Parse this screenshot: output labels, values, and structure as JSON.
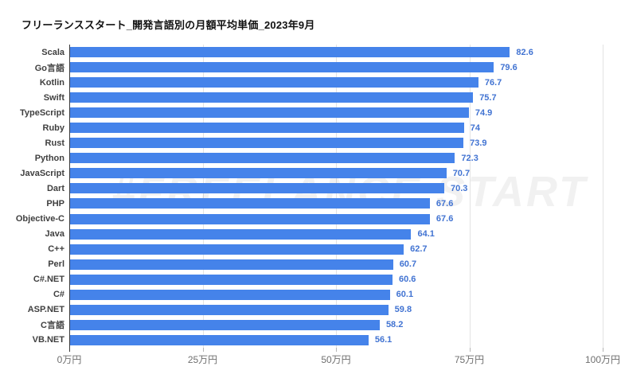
{
  "title": "フリーランススタート_開発言語別の月額平均単価_2023年9月",
  "watermark": "#FREELANCE START",
  "chart_data": {
    "type": "bar",
    "orientation": "horizontal",
    "title": "フリーランススタート_開発言語別の月額平均単価_2023年9月",
    "categories": [
      "Scala",
      "Go言語",
      "Kotlin",
      "Swift",
      "TypeScript",
      "Ruby",
      "Rust",
      "Python",
      "JavaScript",
      "Dart",
      "PHP",
      "Objective-C",
      "Java",
      "C++",
      "Perl",
      "C#.NET",
      "C#",
      "ASP.NET",
      "C言語",
      "VB.NET"
    ],
    "values": [
      82.6,
      79.6,
      76.7,
      75.7,
      74.9,
      74,
      73.9,
      72.3,
      70.7,
      70.3,
      67.6,
      67.6,
      64.1,
      62.7,
      60.7,
      60.6,
      60.1,
      59.8,
      58.2,
      56.1
    ],
    "unit": "万円",
    "xlabel": "",
    "ylabel": "",
    "xlim": [
      0,
      100
    ],
    "x_tick_values": [
      0,
      25,
      50,
      75,
      100
    ],
    "x_tick_labels": [
      "0万円",
      "25万円",
      "50万円",
      "75万円",
      "100万円"
    ],
    "grid": true,
    "legend": "none",
    "bar_color": "#4583ea",
    "value_label_color": "#4173d2"
  }
}
